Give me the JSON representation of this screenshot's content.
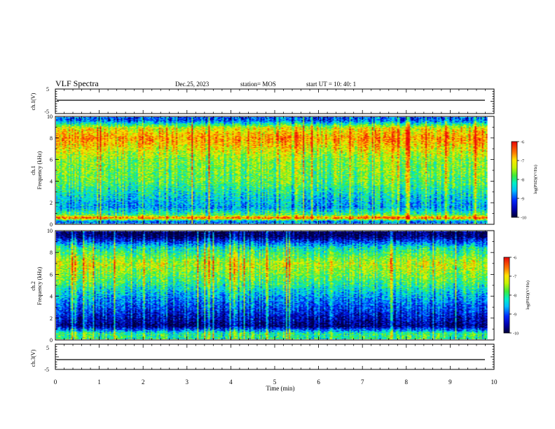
{
  "header": {
    "title": "VLF Spectra",
    "date": "Dec.25, 2023",
    "station": "station= MOS",
    "start": "start  UT =  10: 40: 1"
  },
  "chart_data": [
    {
      "type": "line",
      "panel": "ch.1 waveform",
      "ylabel": "ch.1(V)",
      "y_tick_labels": [
        "5",
        "-5"
      ],
      "ylim": [
        -5,
        5
      ],
      "series": [
        {
          "values_constant": 0
        }
      ]
    },
    {
      "type": "heatmap",
      "panel": "ch.1 spectrogram",
      "ylabel_line1": "ch.1",
      "ylabel_line2": "Frequency (kHz)",
      "y_ticks": [
        0,
        2,
        4,
        6,
        8,
        10
      ],
      "ylim": [
        0,
        10
      ],
      "xlim": [
        0,
        10
      ],
      "data_end_min": 9.85,
      "colorbar": {
        "label": "log(PSD)(V²/Hz)",
        "ticks": [
          -6,
          -7,
          -8,
          -9,
          -10
        ],
        "range": [
          -10,
          -6
        ]
      },
      "frequency_profile_kHz": [
        {
          "f": 0.2,
          "level": -8.8
        },
        {
          "f": 0.5,
          "level": -6.4
        },
        {
          "f": 0.8,
          "level": -7.9
        },
        {
          "f": 1.5,
          "level": -8.7
        },
        {
          "f": 2.5,
          "level": -8.4
        },
        {
          "f": 4.0,
          "level": -7.8
        },
        {
          "f": 6.0,
          "level": -7.6
        },
        {
          "f": 8.0,
          "level": -6.7
        },
        {
          "f": 9.0,
          "level": -7.2
        },
        {
          "f": 9.7,
          "level": -9.0
        }
      ]
    },
    {
      "type": "heatmap",
      "panel": "ch.2 spectrogram",
      "ylabel_line1": "ch.2",
      "ylabel_line2": "Frequency (kHz)",
      "y_ticks": [
        0,
        2,
        4,
        6,
        8,
        10
      ],
      "ylim": [
        0,
        10
      ],
      "xlim": [
        0,
        10
      ],
      "data_end_min": 9.85,
      "colorbar": {
        "label": "log(PSD)(V²/Hz)",
        "ticks": [
          -6,
          -7,
          -8,
          -9,
          -10
        ],
        "range": [
          -10,
          -6
        ]
      },
      "frequency_profile_kHz": [
        {
          "f": 0.5,
          "level": -8.0
        },
        {
          "f": 1.2,
          "level": -9.8
        },
        {
          "f": 2.5,
          "level": -9.2
        },
        {
          "f": 4.0,
          "level": -8.6
        },
        {
          "f": 5.5,
          "level": -7.8
        },
        {
          "f": 7.0,
          "level": -7.3
        },
        {
          "f": 8.5,
          "level": -8.2
        },
        {
          "f": 9.6,
          "level": -9.9
        }
      ]
    },
    {
      "type": "line",
      "panel": "ch.3 waveform",
      "ylabel": "ch.3(V)",
      "y_tick_labels": [
        "5",
        "-5"
      ],
      "ylim": [
        -5,
        5
      ],
      "xlabel": "Time (min)",
      "x_ticks": [
        0,
        1,
        2,
        3,
        4,
        5,
        6,
        7,
        8,
        9,
        10
      ],
      "xlim": [
        0,
        10
      ],
      "series": [
        {
          "values_constant": 0
        }
      ]
    }
  ]
}
